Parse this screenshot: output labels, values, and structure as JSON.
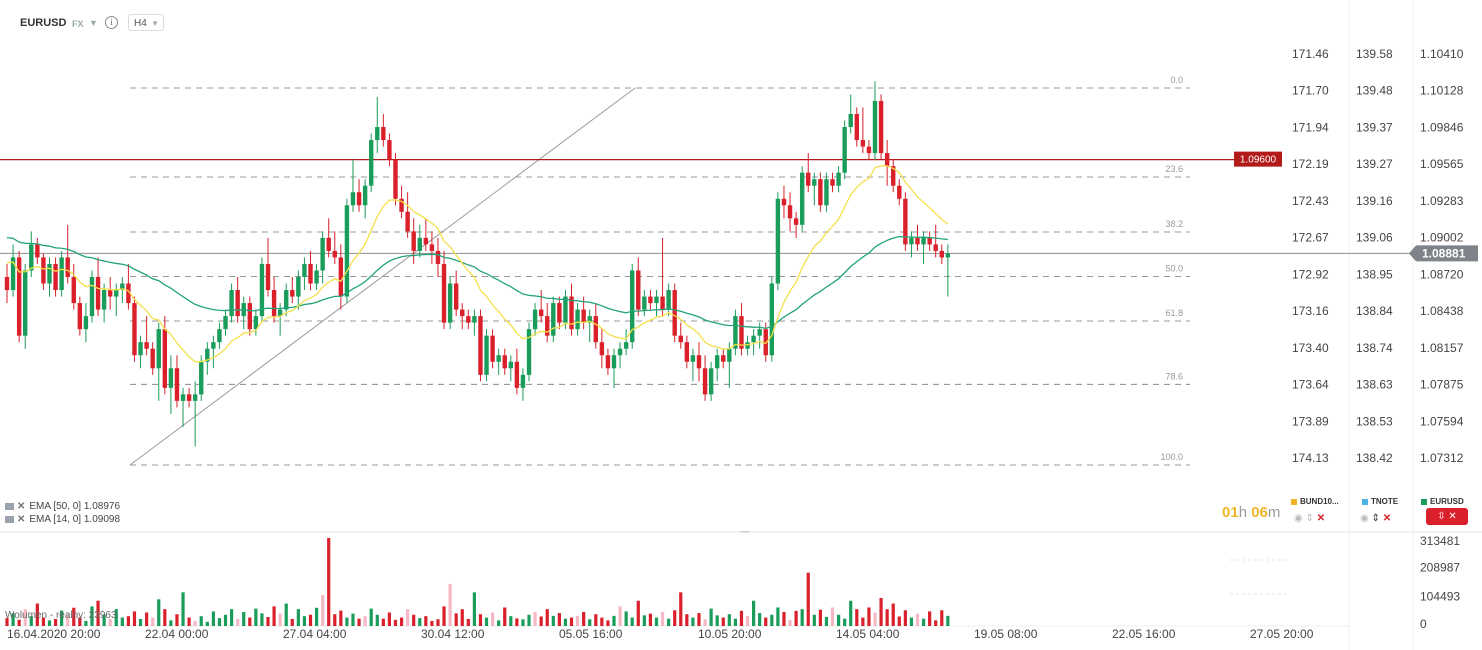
{
  "header": {
    "symbol": "EURUSD",
    "market": "FX",
    "timeframe": "H4"
  },
  "chart_data": {
    "type": "candlestick",
    "symbol": "EURUSD",
    "timeframe": "H4",
    "current_price": 1.08881,
    "horizontal_line": 1.096,
    "y_axis_primary": [
      "1.10410",
      "1.10128",
      "1.09846",
      "1.09565",
      "1.09283",
      "1.09002",
      "1.08720",
      "1.08438",
      "1.08157",
      "1.07875",
      "1.07594",
      "1.07312"
    ],
    "y_axis_secondary": [
      "139.58",
      "139.48",
      "139.37",
      "139.27",
      "139.16",
      "139.06",
      "138.95",
      "138.84",
      "138.74",
      "138.63",
      "138.53",
      "138.42"
    ],
    "y_axis_tertiary": [
      "171.46",
      "171.70",
      "171.94",
      "172.19",
      "172.43",
      "172.67",
      "172.92",
      "173.16",
      "173.40",
      "173.64",
      "173.89",
      "174.13"
    ],
    "x_labels": [
      "16.04.2020  20:00",
      "22.04  00:00",
      "27.04  04:00",
      "30.04  12:00",
      "05.05  16:00",
      "10.05  20:00",
      "14.05  04:00",
      "19.05  08:00",
      "22.05  16:00",
      "27.05  20:00"
    ],
    "fibonacci_levels": [
      "0.0",
      "23.6",
      "38.2",
      "50.0",
      "61.8",
      "78.6",
      "100.0"
    ],
    "candles": [
      [
        1.087,
        1.088,
        1.085,
        1.086
      ],
      [
        1.086,
        1.0895,
        1.0855,
        1.0885
      ],
      [
        1.0885,
        1.089,
        1.082,
        1.0825
      ],
      [
        1.0825,
        1.088,
        1.0815,
        1.0875
      ],
      [
        1.0875,
        1.0905,
        1.087,
        1.0895
      ],
      [
        1.0895,
        1.09,
        1.088,
        1.0885
      ],
      [
        1.0885,
        1.0888,
        1.086,
        1.0865
      ],
      [
        1.0865,
        1.0885,
        1.0855,
        1.088
      ],
      [
        1.088,
        1.0885,
        1.0855,
        1.086
      ],
      [
        1.086,
        1.089,
        1.0855,
        1.0885
      ],
      [
        1.0885,
        1.091,
        1.0865,
        1.087
      ],
      [
        1.087,
        1.088,
        1.0845,
        1.085
      ],
      [
        1.085,
        1.0855,
        1.0825,
        1.083
      ],
      [
        1.083,
        1.085,
        1.082,
        1.084
      ],
      [
        1.084,
        1.0875,
        1.0835,
        1.087
      ],
      [
        1.087,
        1.0885,
        1.084,
        1.0845
      ],
      [
        1.0845,
        1.0865,
        1.0835,
        1.086
      ],
      [
        1.086,
        1.087,
        1.0845,
        1.0855
      ],
      [
        1.0855,
        1.0865,
        1.084,
        1.086
      ],
      [
        1.086,
        1.087,
        1.085,
        1.0865
      ],
      [
        1.0865,
        1.088,
        1.0845,
        1.085
      ],
      [
        1.085,
        1.0855,
        1.0805,
        1.081
      ],
      [
        1.081,
        1.0825,
        1.08,
        1.082
      ],
      [
        1.082,
        1.084,
        1.081,
        1.0815
      ],
      [
        1.0815,
        1.082,
        1.0795,
        1.08
      ],
      [
        1.08,
        1.0835,
        1.0775,
        1.083
      ],
      [
        1.083,
        1.084,
        1.078,
        1.0785
      ],
      [
        1.0785,
        1.081,
        1.0765,
        1.08
      ],
      [
        1.08,
        1.081,
        1.077,
        1.0775
      ],
      [
        1.0775,
        1.0785,
        1.0755,
        1.078
      ],
      [
        1.078,
        1.0785,
        1.077,
        1.0775
      ],
      [
        1.0775,
        1.079,
        1.074,
        1.078
      ],
      [
        1.078,
        1.081,
        1.0775,
        1.0805
      ],
      [
        1.0805,
        1.082,
        1.0795,
        1.0815
      ],
      [
        1.0815,
        1.0825,
        1.08,
        1.082
      ],
      [
        1.082,
        1.0835,
        1.0815,
        1.083
      ],
      [
        1.083,
        1.0845,
        1.0825,
        1.084
      ],
      [
        1.084,
        1.0865,
        1.0835,
        1.086
      ],
      [
        1.086,
        1.087,
        1.0835,
        1.084
      ],
      [
        1.084,
        1.0855,
        1.083,
        1.085
      ],
      [
        1.085,
        1.0855,
        1.0825,
        1.083
      ],
      [
        1.083,
        1.0845,
        1.0825,
        1.084
      ],
      [
        1.084,
        1.0885,
        1.0835,
        1.088
      ],
      [
        1.088,
        1.09,
        1.0855,
        1.086
      ],
      [
        1.086,
        1.087,
        1.0835,
        1.084
      ],
      [
        1.084,
        1.085,
        1.0825,
        1.0845
      ],
      [
        1.0845,
        1.0865,
        1.084,
        1.086
      ],
      [
        1.086,
        1.087,
        1.085,
        1.0855
      ],
      [
        1.0855,
        1.0875,
        1.0845,
        1.087
      ],
      [
        1.087,
        1.0885,
        1.086,
        1.088
      ],
      [
        1.088,
        1.089,
        1.086,
        1.0865
      ],
      [
        1.0865,
        1.088,
        1.086,
        1.0875
      ],
      [
        1.0875,
        1.0905,
        1.0865,
        1.09
      ],
      [
        1.09,
        1.0915,
        1.0885,
        1.089
      ],
      [
        1.089,
        1.0905,
        1.088,
        1.0885
      ],
      [
        1.0885,
        1.0895,
        1.0845,
        1.0855
      ],
      [
        1.0855,
        1.093,
        1.085,
        1.0925
      ],
      [
        1.0925,
        1.096,
        1.092,
        1.0935
      ],
      [
        1.0935,
        1.0945,
        1.092,
        1.0925
      ],
      [
        1.0925,
        1.0945,
        1.0915,
        1.094
      ],
      [
        1.094,
        1.098,
        1.0935,
        1.0975
      ],
      [
        1.0975,
        1.1008,
        1.0965,
        1.0985
      ],
      [
        1.0985,
        1.0995,
        1.097,
        1.0975
      ],
      [
        1.0975,
        1.098,
        1.0955,
        1.096
      ],
      [
        1.096,
        1.0965,
        1.0925,
        1.093
      ],
      [
        1.093,
        1.094,
        1.0915,
        1.092
      ],
      [
        1.092,
        1.0935,
        1.09,
        1.0905
      ],
      [
        1.0905,
        1.0915,
        1.088,
        1.089
      ],
      [
        1.089,
        1.091,
        1.0885,
        1.09
      ],
      [
        1.09,
        1.0915,
        1.089,
        1.0895
      ],
      [
        1.0895,
        1.0905,
        1.088,
        1.089
      ],
      [
        1.089,
        1.09,
        1.087,
        1.088
      ],
      [
        1.088,
        1.089,
        1.083,
        1.0835
      ],
      [
        1.0835,
        1.087,
        1.083,
        1.0865
      ],
      [
        1.0865,
        1.0875,
        1.084,
        1.0845
      ],
      [
        1.0845,
        1.085,
        1.083,
        1.084
      ],
      [
        1.084,
        1.0845,
        1.083,
        1.0835
      ],
      [
        1.0835,
        1.0845,
        1.0825,
        1.084
      ],
      [
        1.084,
        1.0845,
        1.079,
        1.0795
      ],
      [
        1.0795,
        1.083,
        1.079,
        1.0825
      ],
      [
        1.0825,
        1.083,
        1.08,
        1.0805
      ],
      [
        1.0805,
        1.0815,
        1.0795,
        1.081
      ],
      [
        1.081,
        1.0815,
        1.0795,
        1.08
      ],
      [
        1.08,
        1.081,
        1.079,
        1.0805
      ],
      [
        1.0805,
        1.0815,
        1.078,
        1.0785
      ],
      [
        1.0785,
        1.08,
        1.0775,
        1.0795
      ],
      [
        1.0795,
        1.0835,
        1.079,
        1.083
      ],
      [
        1.083,
        1.085,
        1.0825,
        1.0845
      ],
      [
        1.0845,
        1.086,
        1.0835,
        1.084
      ],
      [
        1.084,
        1.085,
        1.082,
        1.0825
      ],
      [
        1.0825,
        1.0855,
        1.082,
        1.085
      ],
      [
        1.085,
        1.0855,
        1.083,
        1.0835
      ],
      [
        1.0835,
        1.086,
        1.083,
        1.0855
      ],
      [
        1.0855,
        1.0865,
        1.0825,
        1.083
      ],
      [
        1.083,
        1.085,
        1.0825,
        1.0845
      ],
      [
        1.0845,
        1.0855,
        1.083,
        1.0835
      ],
      [
        1.0835,
        1.0845,
        1.082,
        1.084
      ],
      [
        1.084,
        1.085,
        1.0815,
        1.082
      ],
      [
        1.082,
        1.083,
        1.08,
        1.081
      ],
      [
        1.081,
        1.0815,
        1.0795,
        1.08
      ],
      [
        1.08,
        1.0815,
        1.0785,
        1.081
      ],
      [
        1.081,
        1.082,
        1.08,
        1.0815
      ],
      [
        1.0815,
        1.083,
        1.081,
        1.082
      ],
      [
        1.082,
        1.088,
        1.0815,
        1.0875
      ],
      [
        1.0875,
        1.0885,
        1.084,
        1.0845
      ],
      [
        1.0845,
        1.086,
        1.084,
        1.0855
      ],
      [
        1.0855,
        1.086,
        1.0845,
        1.085
      ],
      [
        1.085,
        1.086,
        1.084,
        1.0855
      ],
      [
        1.0855,
        1.09,
        1.084,
        1.0845
      ],
      [
        1.0845,
        1.0865,
        1.084,
        1.086
      ],
      [
        1.086,
        1.0865,
        1.082,
        1.0825
      ],
      [
        1.0825,
        1.0835,
        1.0815,
        1.082
      ],
      [
        1.082,
        1.0825,
        1.08,
        1.0805
      ],
      [
        1.0805,
        1.0815,
        1.079,
        1.081
      ],
      [
        1.081,
        1.082,
        1.079,
        1.08
      ],
      [
        1.08,
        1.081,
        1.0775,
        1.078
      ],
      [
        1.078,
        1.0805,
        1.0775,
        1.08
      ],
      [
        1.08,
        1.0815,
        1.079,
        1.081
      ],
      [
        1.081,
        1.0815,
        1.08,
        1.0805
      ],
      [
        1.0805,
        1.082,
        1.0785,
        1.0815
      ],
      [
        1.0815,
        1.0845,
        1.081,
        1.084
      ],
      [
        1.084,
        1.085,
        1.081,
        1.0815
      ],
      [
        1.0815,
        1.0825,
        1.081,
        1.082
      ],
      [
        1.082,
        1.083,
        1.081,
        1.0825
      ],
      [
        1.0825,
        1.0835,
        1.0815,
        1.083
      ],
      [
        1.083,
        1.0835,
        1.0805,
        1.081
      ],
      [
        1.081,
        1.087,
        1.0805,
        1.0865
      ],
      [
        1.0865,
        1.0935,
        1.086,
        1.093
      ],
      [
        1.093,
        1.094,
        1.0915,
        1.0925
      ],
      [
        1.0925,
        1.0935,
        1.0905,
        1.0915
      ],
      [
        1.0915,
        1.092,
        1.09,
        1.091
      ],
      [
        1.091,
        1.0955,
        1.0905,
        1.095
      ],
      [
        1.095,
        1.0965,
        1.0935,
        1.094
      ],
      [
        1.094,
        1.095,
        1.0925,
        1.0945
      ],
      [
        1.0945,
        1.095,
        1.092,
        1.0925
      ],
      [
        1.0925,
        1.095,
        1.092,
        1.0945
      ],
      [
        1.0945,
        1.095,
        1.0935,
        1.094
      ],
      [
        1.094,
        1.0955,
        1.0935,
        1.095
      ],
      [
        1.095,
        1.099,
        1.0945,
        1.0985
      ],
      [
        1.0985,
        1.101,
        1.098,
        1.0995
      ],
      [
        1.0995,
        1.1,
        1.097,
        1.0975
      ],
      [
        1.0975,
        1.1,
        1.0965,
        1.097
      ],
      [
        1.097,
        1.0975,
        1.096,
        1.0965
      ],
      [
        1.0965,
        1.102,
        1.096,
        1.1005
      ],
      [
        1.1005,
        1.101,
        1.096,
        1.0965
      ],
      [
        1.0965,
        1.0975,
        1.094,
        1.0955
      ],
      [
        1.0955,
        1.096,
        1.0935,
        1.094
      ],
      [
        1.094,
        1.0945,
        1.0925,
        1.093
      ],
      [
        1.093,
        1.0935,
        1.089,
        1.0895
      ],
      [
        1.0895,
        1.0905,
        1.0885,
        1.09
      ],
      [
        1.09,
        1.091,
        1.089,
        1.0895
      ],
      [
        1.0895,
        1.0905,
        1.088,
        1.09
      ],
      [
        1.09,
        1.0905,
        1.089,
        1.0895
      ],
      [
        1.0895,
        1.091,
        1.0885,
        1.089
      ],
      [
        1.089,
        1.0895,
        1.088,
        1.0885
      ],
      [
        1.0885,
        1.0895,
        1.0855,
        1.0888
      ]
    ],
    "volume_axis": [
      "313481",
      "208987",
      "104493",
      "0"
    ],
    "volume_label": "Wolumen - realny: 23963",
    "indicators": [
      {
        "name": "EMA [50, 0]",
        "value": "1.08976",
        "color": "#22a37a"
      },
      {
        "name": "EMA [14, 0]",
        "value": "1.09098",
        "color": "#f3e04a"
      }
    ]
  },
  "indicators_panel": {
    "ema50": "EMA [50, 0] 1.08976",
    "ema14": "EMA [14, 0] 1.09098"
  },
  "countdown": {
    "hours": "01",
    "h": "h",
    "minutes": "06",
    "m": "m"
  },
  "legend": [
    {
      "label": "BUND10...",
      "color": "#f0b429"
    },
    {
      "label": "TNOTE",
      "color": "#4fb3e8"
    },
    {
      "label": "EURUSD",
      "color": "#1a9c5a"
    }
  ],
  "colors": {
    "bull": "#1a9c5a",
    "bear": "#d9202b",
    "ema50": "#22a37a",
    "ema14": "#f3e04a",
    "hline": "#b31b1b"
  }
}
